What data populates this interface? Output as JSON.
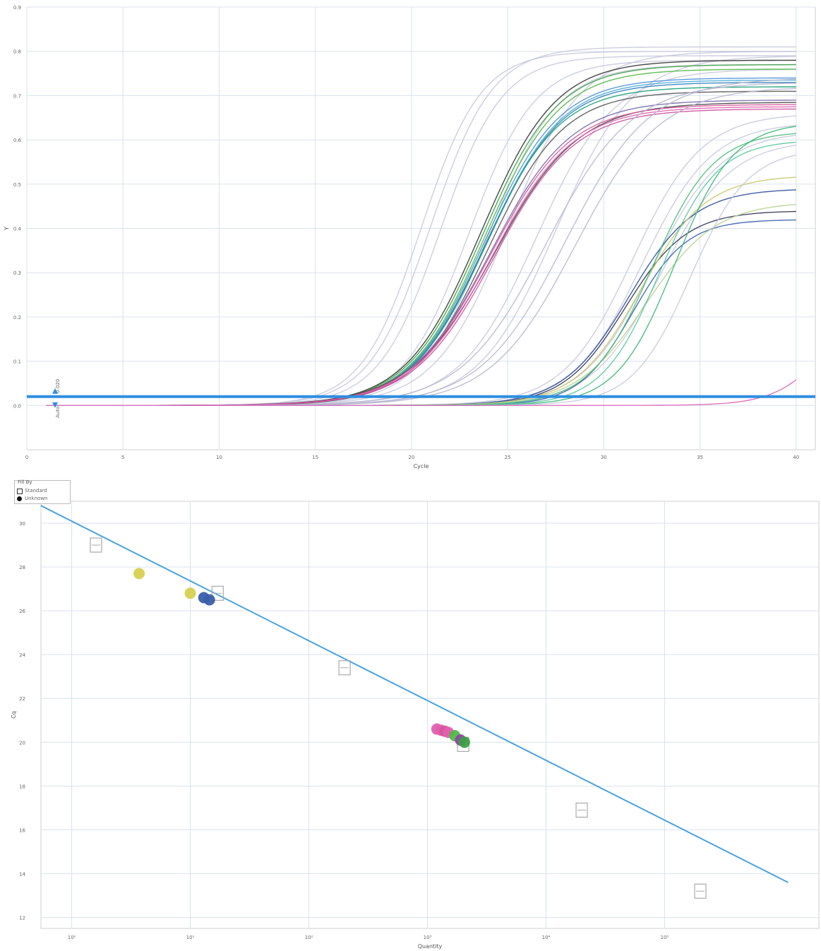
{
  "chart_data": [
    {
      "type": "line",
      "xlabel": "Cycle",
      "ylabel": "Y",
      "xlim": [
        0,
        41
      ],
      "ylim": [
        -0.1,
        0.9
      ],
      "x_ticks": [
        "0",
        "5",
        "10",
        "15",
        "20",
        "25",
        "30",
        "35",
        "40"
      ],
      "y_ticks": [
        "0.0",
        "0.1",
        "0.2",
        "0.3",
        "0.4",
        "0.5",
        "0.6",
        "0.7",
        "0.8",
        "0.9"
      ],
      "threshold": {
        "value": 0.02,
        "label": "0.020"
      },
      "baseline_label": "Auto",
      "grid": true,
      "series": [
        {
          "color": "#c6c9dd",
          "ct": 17.0,
          "plateau": 0.8,
          "slope": 1.55
        },
        {
          "color": "#c6c9dd",
          "ct": 17.5,
          "plateau": 0.81,
          "slope": 1.6
        },
        {
          "color": "#c6c9dd",
          "ct": 18.0,
          "plateau": 0.79,
          "slope": 1.6
        },
        {
          "color": "#c6c9dd",
          "ct": 19.5,
          "plateau": 0.78,
          "slope": 1.7
        },
        {
          "color": "#c6c9dd",
          "ct": 20.5,
          "plateau": 0.77,
          "slope": 1.8
        },
        {
          "color": "#c6c9dd",
          "ct": 21.5,
          "plateau": 0.8,
          "slope": 1.9
        },
        {
          "color": "#c6c9dd",
          "ct": 23.0,
          "plateau": 0.76,
          "slope": 2.0
        },
        {
          "color": "#c6c9dd",
          "ct": 24.0,
          "plateau": 0.79,
          "slope": 2.0
        },
        {
          "color": "#333333",
          "ct": 20.1,
          "plateau": 0.78,
          "slope": 1.95
        },
        {
          "color": "#3d9e45",
          "ct": 20.2,
          "plateau": 0.77,
          "slope": 1.95
        },
        {
          "color": "#52b848",
          "ct": 20.3,
          "plateau": 0.76,
          "slope": 1.95
        },
        {
          "color": "#4a90d9",
          "ct": 20.3,
          "plateau": 0.74,
          "slope": 1.95
        },
        {
          "color": "#4aa8d8",
          "ct": 20.4,
          "plateau": 0.735,
          "slope": 1.95
        },
        {
          "color": "#2c7fb8",
          "ct": 20.4,
          "plateau": 0.73,
          "slope": 1.95
        },
        {
          "color": "#1b9e77",
          "ct": 20.3,
          "plateau": 0.72,
          "slope": 1.95
        },
        {
          "color": "#555555",
          "ct": 20.5,
          "plateau": 0.71,
          "slope": 1.95
        },
        {
          "color": "#7a6aa8",
          "ct": 20.6,
          "plateau": 0.69,
          "slope": 2.1
        },
        {
          "color": "#444444",
          "ct": 20.8,
          "plateau": 0.685,
          "slope": 2.2
        },
        {
          "color": "#d9559a",
          "ct": 20.6,
          "plateau": 0.68,
          "slope": 2.1
        },
        {
          "color": "#e060b0",
          "ct": 20.7,
          "plateau": 0.675,
          "slope": 2.1
        },
        {
          "color": "#cc4fa0",
          "ct": 20.8,
          "plateau": 0.67,
          "slope": 2.1
        },
        {
          "color": "#b8b8d0",
          "ct": 23.5,
          "plateau": 0.73,
          "slope": 2.2
        },
        {
          "color": "#b8b8d0",
          "ct": 24.5,
          "plateau": 0.74,
          "slope": 2.2
        },
        {
          "color": "#b8b8d0",
          "ct": 25.0,
          "plateau": 0.72,
          "slope": 2.2
        },
        {
          "color": "#c6c9dd",
          "ct": 28.0,
          "plateau": 0.66,
          "slope": 1.8
        },
        {
          "color": "#c6c9dd",
          "ct": 28.5,
          "plateau": 0.64,
          "slope": 1.8
        },
        {
          "color": "#c6c9dd",
          "ct": 29.0,
          "plateau": 0.62,
          "slope": 1.8
        },
        {
          "color": "#c6c9dd",
          "ct": 29.5,
          "plateau": 0.6,
          "slope": 1.8
        },
        {
          "color": "#333355",
          "ct": 27.6,
          "plateau": 0.44,
          "slope": 1.6
        },
        {
          "color": "#2c4e9e",
          "ct": 27.8,
          "plateau": 0.49,
          "slope": 1.7
        },
        {
          "color": "#3b5fae",
          "ct": 28.0,
          "plateau": 0.42,
          "slope": 1.4
        },
        {
          "color": "#c8c86a",
          "ct": 28.4,
          "plateau": 0.52,
          "slope": 1.7
        },
        {
          "color": "#b8d090",
          "ct": 28.7,
          "plateau": 0.46,
          "slope": 1.8
        },
        {
          "color": "#4cbe7a",
          "ct": 29.0,
          "plateau": 0.62,
          "slope": 1.6
        },
        {
          "color": "#5ac8a0",
          "ct": 29.4,
          "plateau": 0.6,
          "slope": 1.5
        },
        {
          "color": "#3cb878",
          "ct": 30.2,
          "plateau": 0.64,
          "slope": 1.5
        },
        {
          "color": "#c6c9dd",
          "ct": 31.0,
          "plateau": 0.58,
          "slope": 1.5
        },
        {
          "color": "#dd66bb",
          "ct": 38.5,
          "plateau": 0.3,
          "slope": 1.4
        }
      ]
    },
    {
      "type": "scatter",
      "xlabel": "Quantity",
      "ylabel": "Cq",
      "xscale": "log",
      "xlim": [
        0.55,
        2000000
      ],
      "ylim": [
        11.5,
        31
      ],
      "x_ticks": [
        "10⁰",
        "10¹",
        "10²",
        "10³",
        "10⁴",
        "10⁵"
      ],
      "y_ticks": [
        "12",
        "14",
        "16",
        "18",
        "20",
        "22",
        "24",
        "26",
        "28",
        "30"
      ],
      "legend": {
        "title": "Fill By",
        "entries": [
          "Standard",
          "Unknown"
        ],
        "position": "top-left"
      },
      "grid": true,
      "standard_curve": {
        "x": [
          0.55,
          1100000
        ],
        "y": [
          30.8,
          13.6
        ],
        "color": "#4aa3e0"
      },
      "standards": {
        "x": [
          1.6,
          17,
          200,
          2000,
          20000,
          200000
        ],
        "y": [
          29.0,
          26.8,
          23.4,
          19.9,
          16.9,
          13.2
        ]
      },
      "unknowns": [
        {
          "x": 3.7,
          "y": 27.7,
          "color": "#d6d050"
        },
        {
          "x": 10,
          "y": 26.8,
          "color": "#d6d050"
        },
        {
          "x": 13,
          "y": 26.6,
          "color": "#3a5ea8"
        },
        {
          "x": 14.5,
          "y": 26.5,
          "color": "#3a5ea8"
        },
        {
          "x": 1200,
          "y": 20.6,
          "color": "#e060b0"
        },
        {
          "x": 1300,
          "y": 20.55,
          "color": "#e060b0"
        },
        {
          "x": 1400,
          "y": 20.5,
          "color": "#d6559a"
        },
        {
          "x": 1500,
          "y": 20.45,
          "color": "#e060b0"
        },
        {
          "x": 1700,
          "y": 20.3,
          "color": "#52b848"
        },
        {
          "x": 1900,
          "y": 20.1,
          "color": "#8c4aa0"
        },
        {
          "x": 2050,
          "y": 20.0,
          "color": "#3d9e45"
        }
      ]
    }
  ]
}
